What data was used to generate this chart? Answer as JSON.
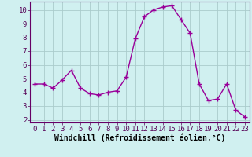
{
  "x": [
    0,
    1,
    2,
    3,
    4,
    5,
    6,
    7,
    8,
    9,
    10,
    11,
    12,
    13,
    14,
    15,
    16,
    17,
    18,
    19,
    20,
    21,
    22,
    23
  ],
  "y": [
    4.6,
    4.6,
    4.3,
    4.9,
    5.6,
    4.3,
    3.9,
    3.8,
    4.0,
    4.1,
    5.1,
    7.9,
    9.5,
    10.0,
    10.2,
    10.3,
    9.3,
    8.3,
    4.6,
    3.4,
    3.5,
    4.6,
    2.7,
    2.2
  ],
  "line_color": "#990099",
  "marker_color": "#990099",
  "background_color": "#d0f0f0",
  "grid_color": "#aacccc",
  "xlabel": "Windchill (Refroidissement éolien,°C)",
  "xlim": [
    -0.5,
    23.5
  ],
  "ylim": [
    1.8,
    10.6
  ],
  "yticks": [
    2,
    3,
    4,
    5,
    6,
    7,
    8,
    9,
    10
  ],
  "xticks": [
    0,
    1,
    2,
    3,
    4,
    5,
    6,
    7,
    8,
    9,
    10,
    11,
    12,
    13,
    14,
    15,
    16,
    17,
    18,
    19,
    20,
    21,
    22,
    23
  ],
  "tick_label_fontsize": 6.5,
  "xlabel_fontsize": 7,
  "line_width": 1.0,
  "marker_size": 4,
  "spine_color": "#660066"
}
